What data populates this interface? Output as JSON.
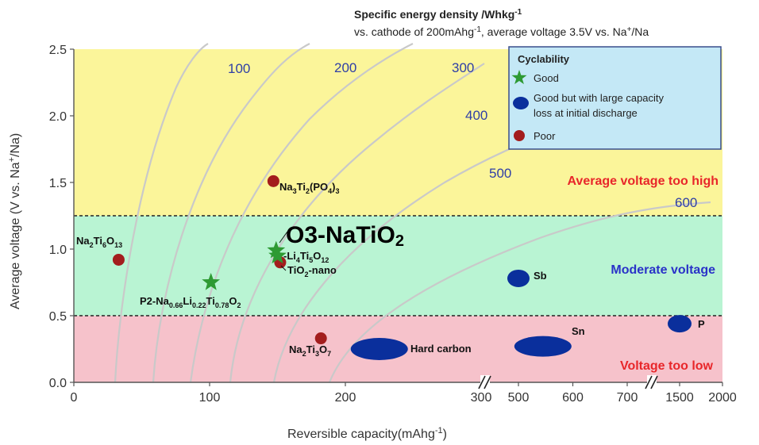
{
  "chart_data": {
    "type": "scatter",
    "title_line1": "Specific energy density /Whkg",
    "title_line1_sup": "-1",
    "title_line2": "vs. cathode of 200mAhg",
    "title_line2_sup": "-1",
    "title_line2_rest": ", average voltage 3.5V vs. Na",
    "title_line2_sup2": "+",
    "title_line2_end": "/Na",
    "xlabel": "Reversible capacity(mAhg",
    "xlabel_sup": "-1",
    "xlabel_end": ")",
    "ylabel": "Average voltage (V vs. Na",
    "ylabel_sup": "+",
    "ylabel_end": "/Na)",
    "ylim": [
      0,
      2.5
    ],
    "yticks": [
      "0.0",
      "0.5",
      "1.0",
      "1.5",
      "2.0",
      "2.5"
    ],
    "x_segments": [
      {
        "range": [
          0,
          300
        ],
        "ticks": [
          "0",
          "100",
          "200",
          "300"
        ]
      },
      {
        "range": [
          450,
          800
        ],
        "ticks": [
          "500",
          "600",
          "700"
        ]
      },
      {
        "range": [
          1400,
          2000
        ],
        "ticks": [
          "1500",
          "2000"
        ]
      }
    ],
    "regions": [
      {
        "label": "Average voltage too high",
        "from": 1.25,
        "to": 2.5,
        "color": "#fbf59a",
        "text_color": "#e8262a"
      },
      {
        "label": "Moderate voltage",
        "from": 0.5,
        "to": 1.25,
        "color": "#b9f4d3",
        "text_color": "#2a32c8"
      },
      {
        "label": "Voltage too low",
        "from": 0.0,
        "to": 0.5,
        "color": "#f6c2cb",
        "text_color": "#e8262a"
      }
    ],
    "contour_labels": [
      "100",
      "200",
      "300",
      "400",
      "500",
      "600"
    ],
    "legend": {
      "title": "Cyclability",
      "entries": [
        {
          "label": "Good",
          "marker": "star",
          "color": "#2e9a33"
        },
        {
          "label_line1": "Good but with large capacity",
          "label_line2": "loss at initial discharge",
          "marker": "ellipse",
          "color": "#0a2f9c"
        },
        {
          "label": "Poor",
          "marker": "circle",
          "color": "#a31d1d"
        }
      ]
    },
    "points": [
      {
        "name_parts": [
          "Na",
          "2",
          "Ti",
          "6",
          "O",
          "13"
        ],
        "x": 33,
        "y": 0.92,
        "marker": "circle"
      },
      {
        "name_parts": [
          "Na",
          "3",
          "Ti",
          "2",
          "(PO",
          "4",
          ")",
          "3"
        ],
        "x": 147,
        "y": 1.51,
        "marker": "circle"
      },
      {
        "name": "TiO2-nano",
        "name_parts": [
          "TiO",
          "2",
          "-nano"
        ],
        "x": 152,
        "y": 0.9,
        "marker": "circle"
      },
      {
        "name_parts": [
          "Na",
          "2",
          "Ti",
          "3",
          "O",
          "7"
        ],
        "x": 182,
        "y": 0.33,
        "marker": "circle"
      },
      {
        "name": "O3-NaTiO2",
        "name_parts": [
          "O3-NaTiO",
          "2"
        ],
        "x": 149,
        "y": 0.99,
        "marker": "star"
      },
      {
        "name_parts": [
          "-Li",
          "4",
          "Ti",
          "5",
          "O",
          "12"
        ],
        "x": 150,
        "y": 0.95,
        "marker": "star"
      },
      {
        "name_parts": [
          "P2-Na",
          "0.66",
          "Li",
          "0.22",
          "Ti",
          "0.78",
          "O",
          "2"
        ],
        "x": 101,
        "y": 0.75,
        "marker": "star"
      },
      {
        "name": "Hard carbon",
        "x": 225,
        "y": 0.25,
        "marker": "ellipse"
      },
      {
        "name": "Sb",
        "x": 500,
        "y": 0.78,
        "marker": "ellipse"
      },
      {
        "name": "Sn",
        "x": 545,
        "y": 0.27,
        "marker": "ellipse"
      },
      {
        "name": "P",
        "x": 1500,
        "y": 0.44,
        "marker": "ellipse"
      }
    ]
  }
}
